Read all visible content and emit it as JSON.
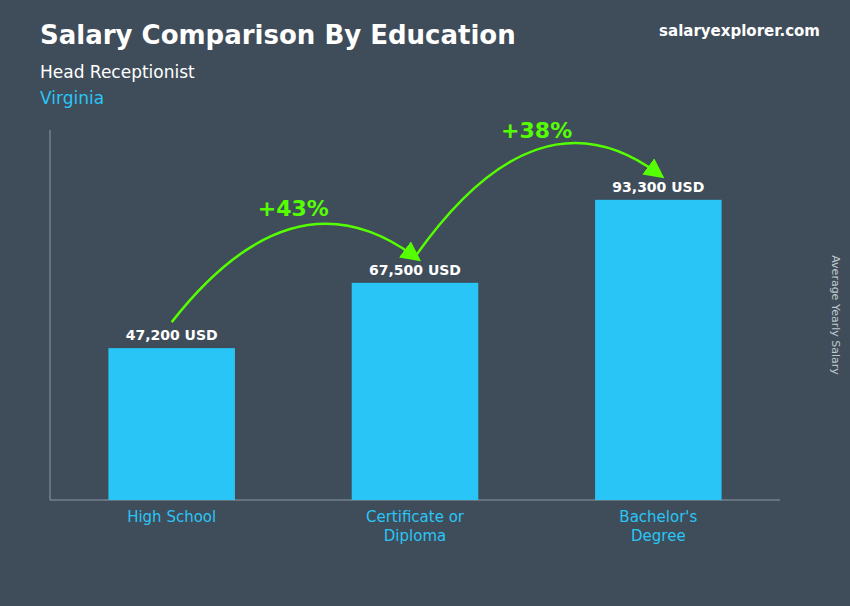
{
  "chart_data": {
    "type": "bar",
    "title": "Salary Comparison By Education",
    "subtitle": [
      "Head Receptionist",
      "Virginia"
    ],
    "y_label": "Average Yearly Salary",
    "categories": [
      "High School",
      "Certificate or\nDiploma",
      "Bachelor's\nDegree"
    ],
    "values": [
      47200,
      67500,
      93300
    ],
    "value_labels": [
      "47,200 USD",
      "67,500 USD",
      "93,300 USD"
    ],
    "data_labels": true,
    "annotations": [
      "+43%",
      "+38%",
      "salaryexplorer.com"
    ],
    "color": "#29c5f6",
    "ylim": [
      0,
      115000
    ],
    "tick_labels": false,
    "grid": false
  }
}
